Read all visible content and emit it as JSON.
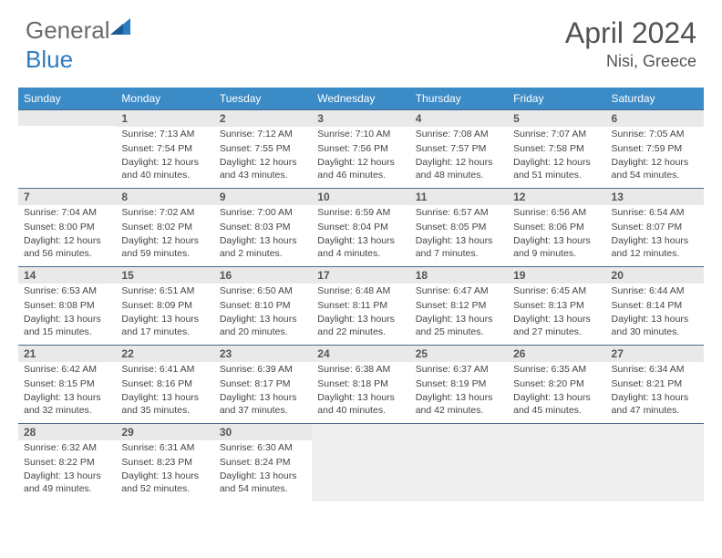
{
  "logo": {
    "gen": "General",
    "blue": "Blue"
  },
  "title": "April 2024",
  "location": "Nisi, Greece",
  "weekdays": [
    "Sunday",
    "Monday",
    "Tuesday",
    "Wednesday",
    "Thursday",
    "Friday",
    "Saturday"
  ],
  "colors": {
    "header_bg": "#3b8bc6",
    "header_text": "#ffffff",
    "daynum_bg": "#e9e9e9",
    "daynum_border": "#4a6a8a",
    "logo_gray": "#6a6a6a",
    "logo_blue": "#2e7cc0",
    "title_color": "#535353",
    "body_text": "#444444",
    "trailing_empty": "#efefef"
  },
  "fonts": {
    "title_size": 32,
    "location_size": 18,
    "header_size": 12,
    "daynum_size": 12,
    "detail_size": 10.5
  },
  "weeks": [
    [
      {
        "day": "",
        "sunrise": "",
        "sunset": "",
        "daylight": ""
      },
      {
        "day": "1",
        "sunrise": "Sunrise: 7:13 AM",
        "sunset": "Sunset: 7:54 PM",
        "daylight": "Daylight: 12 hours and 40 minutes."
      },
      {
        "day": "2",
        "sunrise": "Sunrise: 7:12 AM",
        "sunset": "Sunset: 7:55 PM",
        "daylight": "Daylight: 12 hours and 43 minutes."
      },
      {
        "day": "3",
        "sunrise": "Sunrise: 7:10 AM",
        "sunset": "Sunset: 7:56 PM",
        "daylight": "Daylight: 12 hours and 46 minutes."
      },
      {
        "day": "4",
        "sunrise": "Sunrise: 7:08 AM",
        "sunset": "Sunset: 7:57 PM",
        "daylight": "Daylight: 12 hours and 48 minutes."
      },
      {
        "day": "5",
        "sunrise": "Sunrise: 7:07 AM",
        "sunset": "Sunset: 7:58 PM",
        "daylight": "Daylight: 12 hours and 51 minutes."
      },
      {
        "day": "6",
        "sunrise": "Sunrise: 7:05 AM",
        "sunset": "Sunset: 7:59 PM",
        "daylight": "Daylight: 12 hours and 54 minutes."
      }
    ],
    [
      {
        "day": "7",
        "sunrise": "Sunrise: 7:04 AM",
        "sunset": "Sunset: 8:00 PM",
        "daylight": "Daylight: 12 hours and 56 minutes."
      },
      {
        "day": "8",
        "sunrise": "Sunrise: 7:02 AM",
        "sunset": "Sunset: 8:02 PM",
        "daylight": "Daylight: 12 hours and 59 minutes."
      },
      {
        "day": "9",
        "sunrise": "Sunrise: 7:00 AM",
        "sunset": "Sunset: 8:03 PM",
        "daylight": "Daylight: 13 hours and 2 minutes."
      },
      {
        "day": "10",
        "sunrise": "Sunrise: 6:59 AM",
        "sunset": "Sunset: 8:04 PM",
        "daylight": "Daylight: 13 hours and 4 minutes."
      },
      {
        "day": "11",
        "sunrise": "Sunrise: 6:57 AM",
        "sunset": "Sunset: 8:05 PM",
        "daylight": "Daylight: 13 hours and 7 minutes."
      },
      {
        "day": "12",
        "sunrise": "Sunrise: 6:56 AM",
        "sunset": "Sunset: 8:06 PM",
        "daylight": "Daylight: 13 hours and 9 minutes."
      },
      {
        "day": "13",
        "sunrise": "Sunrise: 6:54 AM",
        "sunset": "Sunset: 8:07 PM",
        "daylight": "Daylight: 13 hours and 12 minutes."
      }
    ],
    [
      {
        "day": "14",
        "sunrise": "Sunrise: 6:53 AM",
        "sunset": "Sunset: 8:08 PM",
        "daylight": "Daylight: 13 hours and 15 minutes."
      },
      {
        "day": "15",
        "sunrise": "Sunrise: 6:51 AM",
        "sunset": "Sunset: 8:09 PM",
        "daylight": "Daylight: 13 hours and 17 minutes."
      },
      {
        "day": "16",
        "sunrise": "Sunrise: 6:50 AM",
        "sunset": "Sunset: 8:10 PM",
        "daylight": "Daylight: 13 hours and 20 minutes."
      },
      {
        "day": "17",
        "sunrise": "Sunrise: 6:48 AM",
        "sunset": "Sunset: 8:11 PM",
        "daylight": "Daylight: 13 hours and 22 minutes."
      },
      {
        "day": "18",
        "sunrise": "Sunrise: 6:47 AM",
        "sunset": "Sunset: 8:12 PM",
        "daylight": "Daylight: 13 hours and 25 minutes."
      },
      {
        "day": "19",
        "sunrise": "Sunrise: 6:45 AM",
        "sunset": "Sunset: 8:13 PM",
        "daylight": "Daylight: 13 hours and 27 minutes."
      },
      {
        "day": "20",
        "sunrise": "Sunrise: 6:44 AM",
        "sunset": "Sunset: 8:14 PM",
        "daylight": "Daylight: 13 hours and 30 minutes."
      }
    ],
    [
      {
        "day": "21",
        "sunrise": "Sunrise: 6:42 AM",
        "sunset": "Sunset: 8:15 PM",
        "daylight": "Daylight: 13 hours and 32 minutes."
      },
      {
        "day": "22",
        "sunrise": "Sunrise: 6:41 AM",
        "sunset": "Sunset: 8:16 PM",
        "daylight": "Daylight: 13 hours and 35 minutes."
      },
      {
        "day": "23",
        "sunrise": "Sunrise: 6:39 AM",
        "sunset": "Sunset: 8:17 PM",
        "daylight": "Daylight: 13 hours and 37 minutes."
      },
      {
        "day": "24",
        "sunrise": "Sunrise: 6:38 AM",
        "sunset": "Sunset: 8:18 PM",
        "daylight": "Daylight: 13 hours and 40 minutes."
      },
      {
        "day": "25",
        "sunrise": "Sunrise: 6:37 AM",
        "sunset": "Sunset: 8:19 PM",
        "daylight": "Daylight: 13 hours and 42 minutes."
      },
      {
        "day": "26",
        "sunrise": "Sunrise: 6:35 AM",
        "sunset": "Sunset: 8:20 PM",
        "daylight": "Daylight: 13 hours and 45 minutes."
      },
      {
        "day": "27",
        "sunrise": "Sunrise: 6:34 AM",
        "sunset": "Sunset: 8:21 PM",
        "daylight": "Daylight: 13 hours and 47 minutes."
      }
    ],
    [
      {
        "day": "28",
        "sunrise": "Sunrise: 6:32 AM",
        "sunset": "Sunset: 8:22 PM",
        "daylight": "Daylight: 13 hours and 49 minutes."
      },
      {
        "day": "29",
        "sunrise": "Sunrise: 6:31 AM",
        "sunset": "Sunset: 8:23 PM",
        "daylight": "Daylight: 13 hours and 52 minutes."
      },
      {
        "day": "30",
        "sunrise": "Sunrise: 6:30 AM",
        "sunset": "Sunset: 8:24 PM",
        "daylight": "Daylight: 13 hours and 54 minutes."
      },
      {
        "day": "",
        "sunrise": "",
        "sunset": "",
        "daylight": "",
        "trailing": true
      },
      {
        "day": "",
        "sunrise": "",
        "sunset": "",
        "daylight": "",
        "trailing": true
      },
      {
        "day": "",
        "sunrise": "",
        "sunset": "",
        "daylight": "",
        "trailing": true
      },
      {
        "day": "",
        "sunrise": "",
        "sunset": "",
        "daylight": "",
        "trailing": true
      }
    ]
  ]
}
